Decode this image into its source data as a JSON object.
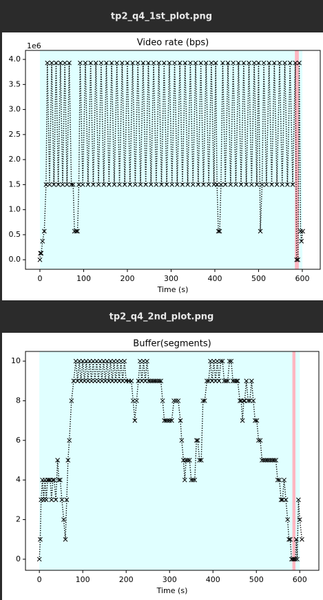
{
  "headers": [
    "tp2_q4_1st_plot.png",
    "tp2_q4_2nd_plot.png"
  ],
  "chart_data": [
    {
      "type": "line",
      "title": "Video rate (bps)",
      "x_label": "Time (s)",
      "y_offset_label": "1e6",
      "color": "#000000",
      "marker": "x",
      "line_style": "dotted",
      "xlim": [
        -33,
        641
      ],
      "ylim": [
        -0.19,
        4.18
      ],
      "xticks": [
        0,
        100,
        200,
        300,
        400,
        500,
        600
      ],
      "yticks": [
        {
          "value": 0,
          "label": "0.0"
        },
        0.5,
        {
          "value": 1,
          "label": "1.0"
        },
        1.5,
        {
          "value": 2,
          "label": "2.0"
        },
        2.5,
        {
          "value": 3,
          "label": "3.0"
        },
        3.5,
        {
          "value": 4,
          "label": "4.0"
        }
      ],
      "spans": [
        {
          "start": 0,
          "end": 600,
          "color": "#e0ffff"
        },
        {
          "start": 583,
          "end": 592,
          "color": "#ffb6c1"
        }
      ],
      "x": [
        0,
        1,
        3,
        6,
        10,
        14,
        17,
        22,
        27,
        32,
        37,
        42,
        47,
        52,
        57,
        62,
        67,
        72,
        76,
        79,
        83,
        86,
        89,
        92,
        98,
        104,
        110,
        116,
        122,
        128,
        134,
        140,
        146,
        152,
        158,
        164,
        170,
        176,
        182,
        188,
        194,
        200,
        206,
        212,
        218,
        224,
        230,
        236,
        242,
        248,
        254,
        260,
        266,
        272,
        278,
        284,
        290,
        296,
        302,
        308,
        314,
        320,
        326,
        332,
        338,
        344,
        350,
        356,
        362,
        368,
        374,
        380,
        386,
        392,
        398,
        402,
        405,
        408,
        411,
        414,
        418,
        424,
        430,
        436,
        442,
        448,
        454,
        460,
        466,
        472,
        478,
        484,
        490,
        496,
        500,
        504,
        508,
        512,
        518,
        524,
        530,
        536,
        542,
        548,
        554,
        560,
        566,
        572,
        578,
        584,
        587,
        590,
        593,
        596,
        598,
        601
      ],
      "values": [
        0,
        0.13,
        0.13,
        0.37,
        0.57,
        1.5,
        3.93,
        1.5,
        3.93,
        1.5,
        3.93,
        1.5,
        3.93,
        1.5,
        3.93,
        1.5,
        3.93,
        1.5,
        1.5,
        0.57,
        0.57,
        0.57,
        1.5,
        3.93,
        1.5,
        3.93,
        1.5,
        3.93,
        1.5,
        3.93,
        1.5,
        3.93,
        1.5,
        3.93,
        1.5,
        3.93,
        1.5,
        3.93,
        1.5,
        3.93,
        1.5,
        3.93,
        1.5,
        3.93,
        1.5,
        3.93,
        1.5,
        3.93,
        1.5,
        3.93,
        1.5,
        3.93,
        1.5,
        3.93,
        1.5,
        3.93,
        1.5,
        3.93,
        1.5,
        3.93,
        1.5,
        3.93,
        1.5,
        3.93,
        1.5,
        3.93,
        1.5,
        3.93,
        1.5,
        3.93,
        1.5,
        3.93,
        1.5,
        3.93,
        1.5,
        3.93,
        1.5,
        0.57,
        0.57,
        1.5,
        3.93,
        1.5,
        3.93,
        1.5,
        3.93,
        1.5,
        3.93,
        1.5,
        3.93,
        1.5,
        3.93,
        1.5,
        3.93,
        1.5,
        3.93,
        0.57,
        1.5,
        3.93,
        1.5,
        3.93,
        1.5,
        3.93,
        1.5,
        3.93,
        1.5,
        3.93,
        1.5,
        3.93,
        1.5,
        3.93,
        0,
        0,
        3.93,
        0.57,
        0.37,
        0.57
      ]
    },
    {
      "type": "line",
      "title": "Buffer(segments)",
      "x_label": "Time (s)",
      "color": "#000000",
      "marker": "x",
      "line_style": "dotted",
      "xlim": [
        -32,
        644
      ],
      "ylim": [
        -0.56,
        10.49
      ],
      "xticks": [
        0,
        100,
        200,
        300,
        400,
        500,
        600
      ],
      "yticks": [
        0,
        2,
        4,
        6,
        8,
        10
      ],
      "spans": [
        {
          "start": 0,
          "end": 600,
          "color": "#e0ffff"
        },
        {
          "start": 583,
          "end": 590,
          "color": "#ffb6c1"
        }
      ],
      "x": [
        0,
        2,
        4,
        7,
        10,
        13,
        16,
        19,
        22,
        25,
        28,
        31,
        34,
        38,
        42,
        45,
        48,
        52,
        56,
        60,
        63,
        66,
        69,
        74,
        79,
        84,
        88,
        92,
        96,
        100,
        104,
        108,
        112,
        116,
        120,
        124,
        128,
        132,
        136,
        140,
        144,
        148,
        152,
        156,
        160,
        164,
        168,
        172,
        176,
        180,
        184,
        188,
        192,
        196,
        200,
        206,
        212,
        216,
        220,
        224,
        228,
        232,
        236,
        240,
        244,
        248,
        252,
        256,
        260,
        264,
        268,
        272,
        276,
        280,
        284,
        288,
        292,
        296,
        300,
        305,
        310,
        315,
        320,
        325,
        328,
        332,
        335,
        338,
        342,
        346,
        350,
        354,
        358,
        362,
        365,
        369,
        373,
        377,
        381,
        386,
        390,
        394,
        398,
        402,
        406,
        410,
        414,
        418,
        422,
        426,
        430,
        434,
        438,
        442,
        446,
        450,
        454,
        457,
        462,
        465,
        468,
        471,
        473,
        477,
        481,
        485,
        489,
        493,
        497,
        501,
        505,
        509,
        513,
        517,
        521,
        525,
        529,
        533,
        537,
        541,
        545,
        549,
        553,
        557,
        560,
        564,
        568,
        572,
        575,
        578,
        581,
        584,
        587,
        590,
        592,
        594,
        597,
        600,
        605
      ],
      "values": [
        0,
        1,
        3,
        4,
        3,
        4,
        3,
        4,
        4,
        4,
        3,
        4,
        4,
        3,
        5,
        4,
        4,
        3,
        2,
        1,
        3,
        5,
        6,
        8,
        9,
        10,
        9,
        10,
        9,
        10,
        9,
        10,
        9,
        10,
        9,
        10,
        9,
        10,
        9,
        10,
        9,
        10,
        9,
        10,
        9,
        10,
        9,
        10,
        9,
        10,
        9,
        10,
        9,
        10,
        9,
        9,
        9,
        8,
        7,
        8,
        9,
        10,
        9,
        10,
        9,
        10,
        9,
        9,
        9,
        9,
        9,
        9,
        9,
        9,
        8,
        7,
        7,
        7,
        7,
        7,
        8,
        8,
        8,
        7,
        6,
        5,
        4,
        5,
        5,
        5,
        4,
        4,
        4,
        6,
        6,
        5,
        5,
        8,
        8,
        9,
        9,
        10,
        9,
        10,
        9,
        10,
        9,
        10,
        10,
        9,
        9,
        9,
        10,
        10,
        9,
        9,
        9,
        9,
        8,
        8,
        7,
        8,
        8,
        9,
        8,
        8,
        9,
        8,
        7,
        7,
        6,
        6,
        5,
        5,
        5,
        5,
        5,
        5,
        5,
        5,
        5,
        4,
        4,
        3,
        3,
        4,
        3,
        2,
        1,
        1,
        0,
        0,
        0,
        0,
        1,
        0,
        3,
        2,
        1
      ]
    }
  ]
}
